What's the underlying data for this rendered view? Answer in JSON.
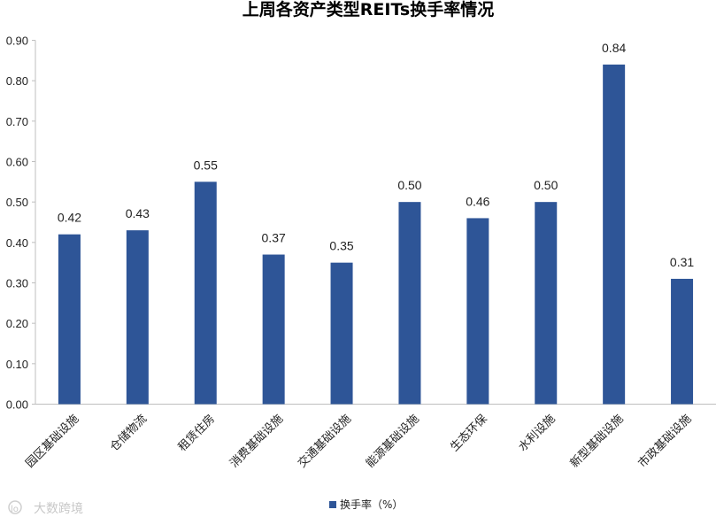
{
  "chart_data": {
    "type": "bar",
    "title": "上周各资产类型REITs换手率情况",
    "categories": [
      "园区基础设施",
      "仓储物流",
      "租赁住房",
      "消费基础设施",
      "交通基础设施",
      "能源基础设施",
      "生态环保",
      "水利设施",
      "新型基础设施",
      "市政基础设施"
    ],
    "series": [
      {
        "name": "换手率（%）",
        "values": [
          0.42,
          0.43,
          0.55,
          0.37,
          0.35,
          0.5,
          0.46,
          0.5,
          0.84,
          0.31
        ],
        "labels": [
          "0.42",
          "0.43",
          "0.55",
          "0.37",
          "0.35",
          "0.50",
          "0.46",
          "0.50",
          "0.84",
          "0.31"
        ]
      }
    ],
    "ylim": [
      0,
      0.9
    ],
    "yticks": [
      "0.00",
      "0.10",
      "0.20",
      "0.30",
      "0.40",
      "0.50",
      "0.60",
      "0.70",
      "0.80",
      "0.90"
    ],
    "xlabel": "",
    "ylabel": "",
    "grid": false,
    "legend_position": "bottom",
    "bar_color": "#2E5597"
  },
  "watermark": {
    "text": "大数跨境",
    "logo_text": "lo"
  }
}
